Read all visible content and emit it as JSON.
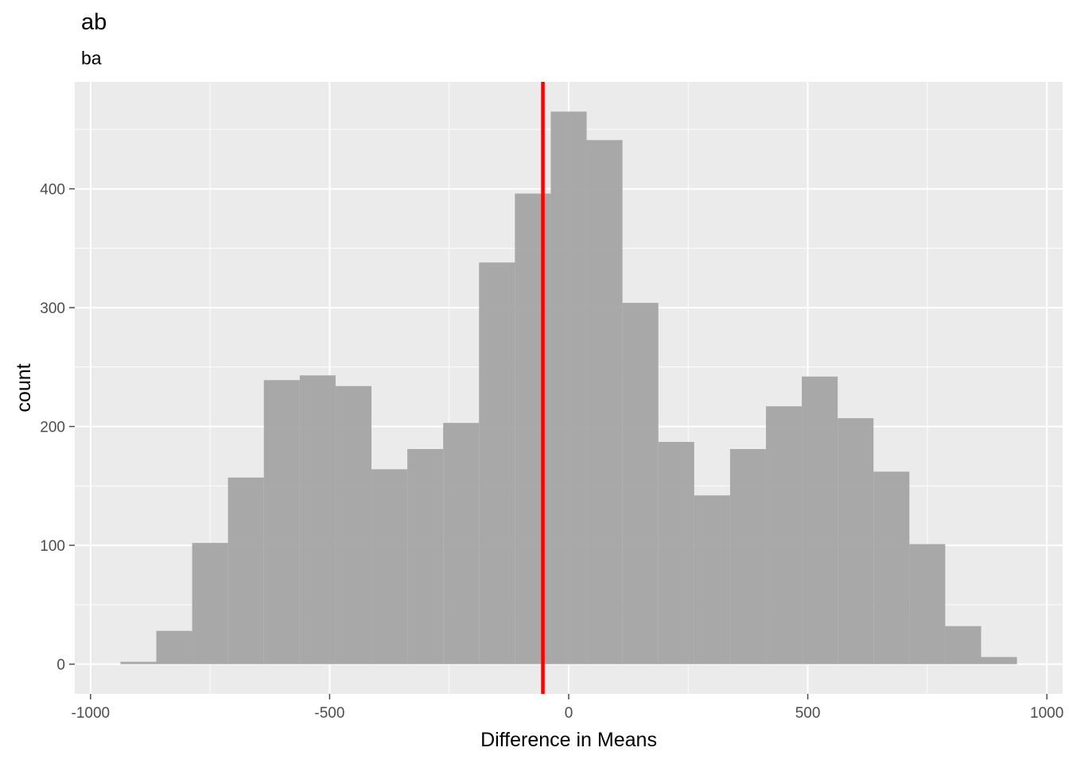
{
  "chart_data": {
    "type": "bar",
    "title": "ab",
    "subtitle": "ba",
    "xlabel": "Difference in Means",
    "ylabel": "count",
    "bin_width": 75,
    "bins": [
      {
        "x0": -937.5,
        "x1": -862.5,
        "count": 2
      },
      {
        "x0": -862.5,
        "x1": -787.5,
        "count": 28
      },
      {
        "x0": -787.5,
        "x1": -712.5,
        "count": 102
      },
      {
        "x0": -712.5,
        "x1": -637.5,
        "count": 157
      },
      {
        "x0": -637.5,
        "x1": -562.5,
        "count": 239
      },
      {
        "x0": -562.5,
        "x1": -487.5,
        "count": 243
      },
      {
        "x0": -487.5,
        "x1": -412.5,
        "count": 234
      },
      {
        "x0": -412.5,
        "x1": -337.5,
        "count": 164
      },
      {
        "x0": -337.5,
        "x1": -262.5,
        "count": 181
      },
      {
        "x0": -262.5,
        "x1": -187.5,
        "count": 203
      },
      {
        "x0": -187.5,
        "x1": -112.5,
        "count": 338
      },
      {
        "x0": -112.5,
        "x1": -37.5,
        "count": 396
      },
      {
        "x0": -37.5,
        "x1": 37.5,
        "count": 465
      },
      {
        "x0": 37.5,
        "x1": 112.5,
        "count": 441
      },
      {
        "x0": 112.5,
        "x1": 187.5,
        "count": 304
      },
      {
        "x0": 187.5,
        "x1": 262.5,
        "count": 187
      },
      {
        "x0": 262.5,
        "x1": 337.5,
        "count": 142
      },
      {
        "x0": 337.5,
        "x1": 412.5,
        "count": 181
      },
      {
        "x0": 412.5,
        "x1": 487.5,
        "count": 217
      },
      {
        "x0": 487.5,
        "x1": 562.5,
        "count": 242
      },
      {
        "x0": 562.5,
        "x1": 637.5,
        "count": 207
      },
      {
        "x0": 637.5,
        "x1": 712.5,
        "count": 162
      },
      {
        "x0": 712.5,
        "x1": 787.5,
        "count": 101
      },
      {
        "x0": 787.5,
        "x1": 862.5,
        "count": 32
      },
      {
        "x0": 862.5,
        "x1": 937.5,
        "count": 6
      }
    ],
    "vline": {
      "x": -54,
      "color": "#ff0000"
    },
    "xlim": [
      -1033,
      1033
    ],
    "ylim": [
      -25,
      490
    ],
    "x_ticks": [
      -1000,
      -500,
      0,
      500,
      1000
    ],
    "x_tick_labels": [
      "-1000",
      "-500",
      "0",
      "500",
      "1000"
    ],
    "y_ticks": [
      0,
      100,
      200,
      300,
      400
    ],
    "y_tick_labels": [
      "0",
      "100",
      "200",
      "300",
      "400"
    ],
    "grid": true,
    "colors": {
      "panel": "#ebebeb",
      "grid": "#ffffff",
      "bar": "#a3a3a3",
      "tick": "#4d4d4d"
    }
  }
}
